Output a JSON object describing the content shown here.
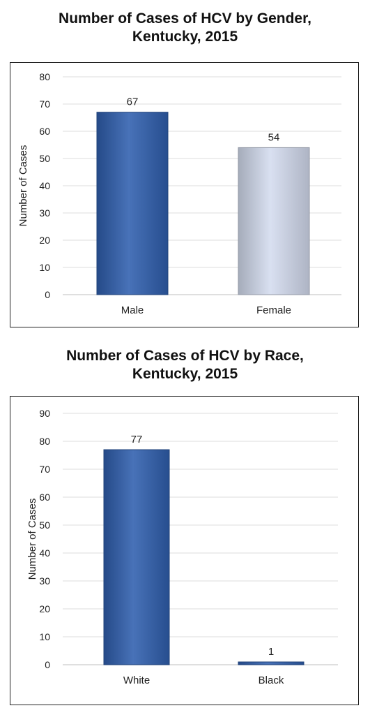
{
  "chart_data": [
    {
      "type": "bar",
      "title": [
        "Number of Cases of HCV by Gender,",
        "Kentucky, 2015"
      ],
      "categories": [
        "Male",
        "Female"
      ],
      "values": [
        67,
        54
      ],
      "data_labels": [
        "67",
        "54"
      ],
      "ylabel": "Number of Cases",
      "xlabel": "",
      "ylim": [
        0,
        80
      ],
      "yticks": [
        0,
        10,
        20,
        30,
        40,
        50,
        60,
        70,
        80
      ],
      "grid": true,
      "legend": "none",
      "bar_colors": [
        "#2f5fae",
        "#d4dcef"
      ]
    },
    {
      "type": "bar",
      "title": [
        "Number of Cases of HCV by Race,",
        "Kentucky, 2015"
      ],
      "categories": [
        "White",
        "Black"
      ],
      "values": [
        77,
        1
      ],
      "data_labels": [
        "77",
        "1"
      ],
      "ylabel": "Number of Cases",
      "xlabel": "",
      "ylim": [
        0,
        90
      ],
      "yticks": [
        0,
        10,
        20,
        30,
        40,
        50,
        60,
        70,
        80,
        90
      ],
      "grid": true,
      "legend": "none",
      "bar_colors": [
        "#2f5fae",
        "#2f5fae"
      ]
    }
  ]
}
